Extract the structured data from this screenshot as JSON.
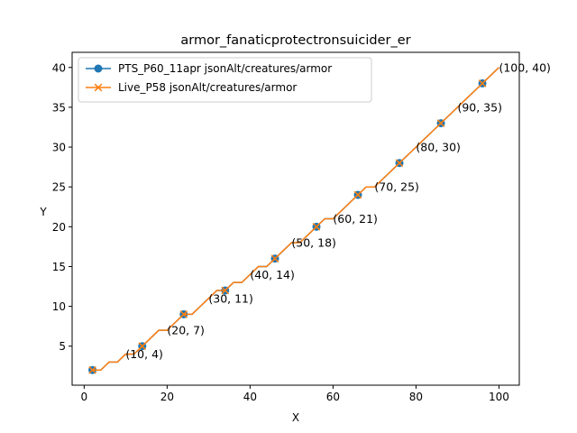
{
  "chart_data": {
    "type": "line",
    "title": "armor_fanaticprotectronsuicider_er",
    "xlabel": "X",
    "ylabel": "Y",
    "xlim": [
      -2.9,
      104.9
    ],
    "ylim": [
      0.1,
      41.9
    ],
    "xticks": [
      0,
      20,
      40,
      60,
      80,
      100
    ],
    "yticks": [
      5,
      10,
      15,
      20,
      25,
      30,
      35,
      40
    ],
    "grid": false,
    "legend_position": "upper-left",
    "series": [
      {
        "name": "PTS_P60_11apr jsonAlt/creatures/armor",
        "color": "#1f77b4",
        "marker": "circle",
        "x": [
          2,
          4,
          6,
          8,
          10,
          12,
          14,
          16,
          18,
          20,
          22,
          24,
          26,
          28,
          30,
          32,
          34,
          36,
          38,
          40,
          42,
          44,
          46,
          48,
          50,
          52,
          54,
          56,
          58,
          60,
          62,
          64,
          66,
          68,
          70,
          72,
          74,
          76,
          78,
          80,
          82,
          84,
          86,
          88,
          90,
          92,
          94,
          96,
          98,
          100
        ],
        "y": [
          2,
          2,
          3,
          3,
          4,
          4,
          5,
          6,
          7,
          7,
          8,
          9,
          9,
          10,
          11,
          12,
          12,
          13,
          13,
          14,
          15,
          15,
          16,
          17,
          18,
          18,
          19,
          20,
          21,
          21,
          22,
          23,
          24,
          25,
          25,
          26,
          27,
          28,
          29,
          30,
          31,
          32,
          33,
          34,
          35,
          36,
          37,
          38,
          39,
          40
        ],
        "markers_x": [
          2,
          14,
          24,
          34,
          46,
          56,
          66,
          76,
          86,
          96
        ],
        "markers_y": [
          2,
          5,
          9,
          12,
          16,
          20,
          24,
          28,
          33,
          38
        ]
      },
      {
        "name": "Live_P58 jsonAlt/creatures/armor",
        "color": "#ff7f0e",
        "marker": "x",
        "x": [
          2,
          4,
          6,
          8,
          10,
          12,
          14,
          16,
          18,
          20,
          22,
          24,
          26,
          28,
          30,
          32,
          34,
          36,
          38,
          40,
          42,
          44,
          46,
          48,
          50,
          52,
          54,
          56,
          58,
          60,
          62,
          64,
          66,
          68,
          70,
          72,
          74,
          76,
          78,
          80,
          82,
          84,
          86,
          88,
          90,
          92,
          94,
          96,
          98,
          100
        ],
        "y": [
          2,
          2,
          3,
          3,
          4,
          4,
          5,
          6,
          7,
          7,
          8,
          9,
          9,
          10,
          11,
          12,
          12,
          13,
          13,
          14,
          15,
          15,
          16,
          17,
          18,
          18,
          19,
          20,
          21,
          21,
          22,
          23,
          24,
          25,
          25,
          26,
          27,
          28,
          29,
          30,
          31,
          32,
          33,
          34,
          35,
          36,
          37,
          38,
          39,
          40
        ],
        "markers_x": [
          2,
          14,
          24,
          34,
          46,
          56,
          66,
          76,
          86,
          96
        ],
        "markers_y": [
          2,
          5,
          9,
          12,
          16,
          20,
          24,
          28,
          33,
          38
        ]
      }
    ],
    "annotations": [
      {
        "x": 10,
        "y": 4,
        "text": "(10, 4)"
      },
      {
        "x": 20,
        "y": 7,
        "text": "(20, 7)"
      },
      {
        "x": 30,
        "y": 11,
        "text": "(30, 11)"
      },
      {
        "x": 40,
        "y": 14,
        "text": "(40, 14)"
      },
      {
        "x": 50,
        "y": 18,
        "text": "(50, 18)"
      },
      {
        "x": 60,
        "y": 21,
        "text": "(60, 21)"
      },
      {
        "x": 70,
        "y": 25,
        "text": "(70, 25)"
      },
      {
        "x": 80,
        "y": 30,
        "text": "(80, 30)"
      },
      {
        "x": 90,
        "y": 35,
        "text": "(90, 35)"
      },
      {
        "x": 100,
        "y": 40,
        "text": "(100, 40)"
      }
    ]
  }
}
